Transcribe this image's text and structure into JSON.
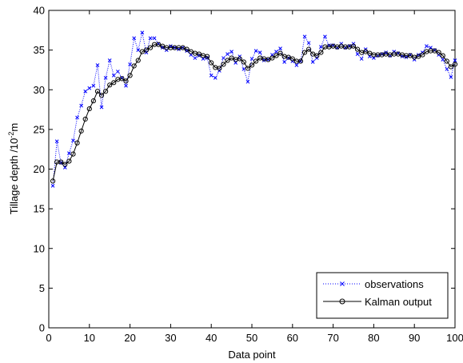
{
  "chart_data": {
    "type": "line",
    "title": "",
    "xlabel": "Data point",
    "ylabel_main": "Tillage depth /10",
    "ylabel_exp": "-2",
    "ylabel_unit": "m",
    "xlim": [
      0,
      100
    ],
    "ylim": [
      0,
      40
    ],
    "xticks": [
      0,
      10,
      20,
      30,
      40,
      50,
      60,
      70,
      80,
      90,
      100
    ],
    "yticks": [
      0,
      5,
      10,
      15,
      20,
      25,
      30,
      35,
      40
    ],
    "grid": false,
    "legend_position": "bottom-right",
    "series": [
      {
        "name": "observations",
        "color": "#0000ff",
        "line_style": "dotted",
        "marker": "x",
        "x": [
          1,
          2,
          3,
          4,
          5,
          6,
          7,
          8,
          9,
          10,
          11,
          12,
          13,
          14,
          15,
          16,
          17,
          18,
          19,
          20,
          21,
          22,
          23,
          24,
          25,
          26,
          27,
          28,
          29,
          30,
          31,
          32,
          33,
          34,
          35,
          36,
          37,
          38,
          39,
          40,
          41,
          42,
          43,
          44,
          45,
          46,
          47,
          48,
          49,
          50,
          51,
          52,
          53,
          54,
          55,
          56,
          57,
          58,
          59,
          60,
          61,
          62,
          63,
          64,
          65,
          66,
          67,
          68,
          69,
          70,
          71,
          72,
          73,
          74,
          75,
          76,
          77,
          78,
          79,
          80,
          81,
          82,
          83,
          84,
          85,
          86,
          87,
          88,
          89,
          90,
          91,
          92,
          93,
          94,
          95,
          96,
          97,
          98,
          99,
          100
        ],
        "y": [
          17.9,
          23.5,
          20.8,
          20.2,
          22.0,
          23.6,
          26.5,
          28.0,
          29.8,
          30.2,
          30.5,
          33.1,
          27.8,
          31.5,
          33.7,
          31.8,
          32.3,
          31.5,
          30.5,
          33.2,
          36.5,
          35.0,
          37.2,
          34.7,
          36.5,
          36.5,
          35.8,
          35.3,
          35.0,
          35.5,
          35.3,
          35.1,
          35.3,
          34.9,
          34.4,
          34.0,
          34.3,
          33.9,
          34.0,
          31.8,
          31.5,
          32.4,
          34.0,
          34.5,
          34.8,
          33.4,
          34.2,
          32.6,
          31.0,
          33.9,
          34.9,
          34.7,
          33.7,
          33.8,
          34.4,
          34.8,
          35.2,
          33.5,
          34.0,
          33.6,
          33.1,
          33.6,
          36.7,
          35.9,
          33.5,
          34.0,
          35.4,
          36.7,
          35.6,
          35.6,
          35.3,
          35.8,
          35.3,
          35.5,
          35.8,
          34.5,
          33.9,
          35.1,
          34.2,
          34.0,
          34.3,
          34.5,
          34.7,
          34.3,
          34.8,
          34.6,
          34.2,
          34.1,
          34.4,
          33.8,
          34.4,
          34.7,
          35.5,
          35.3,
          35.0,
          34.4,
          33.8,
          32.6,
          31.6,
          33.7
        ]
      },
      {
        "name": "Kalman output",
        "color": "#000000",
        "line_style": "solid",
        "marker": "o",
        "x": [
          1,
          2,
          3,
          4,
          5,
          6,
          7,
          8,
          9,
          10,
          11,
          12,
          13,
          14,
          15,
          16,
          17,
          18,
          19,
          20,
          21,
          22,
          23,
          24,
          25,
          26,
          27,
          28,
          29,
          30,
          31,
          32,
          33,
          34,
          35,
          36,
          37,
          38,
          39,
          40,
          41,
          42,
          43,
          44,
          45,
          46,
          47,
          48,
          49,
          50,
          51,
          52,
          53,
          54,
          55,
          56,
          57,
          58,
          59,
          60,
          61,
          62,
          63,
          64,
          65,
          66,
          67,
          68,
          69,
          70,
          71,
          72,
          73,
          74,
          75,
          76,
          77,
          78,
          79,
          80,
          81,
          82,
          83,
          84,
          85,
          86,
          87,
          88,
          89,
          90,
          91,
          92,
          93,
          94,
          95,
          96,
          97,
          98,
          99,
          100
        ],
        "y": [
          18.5,
          20.9,
          20.9,
          20.6,
          21.0,
          21.9,
          23.3,
          24.8,
          26.3,
          27.6,
          28.6,
          29.8,
          29.3,
          29.8,
          30.6,
          30.9,
          31.3,
          31.4,
          31.1,
          31.8,
          33.0,
          33.7,
          34.8,
          35.0,
          35.3,
          35.7,
          35.7,
          35.5,
          35.3,
          35.3,
          35.3,
          35.3,
          35.3,
          35.1,
          34.8,
          34.6,
          34.5,
          34.3,
          34.2,
          33.4,
          32.8,
          32.7,
          33.2,
          33.7,
          34.0,
          33.8,
          33.9,
          33.5,
          32.7,
          33.1,
          33.6,
          34.0,
          33.9,
          33.8,
          34.0,
          34.3,
          34.6,
          34.2,
          34.1,
          33.9,
          33.6,
          33.6,
          34.7,
          35.1,
          34.5,
          34.3,
          34.7,
          35.4,
          35.4,
          35.5,
          35.4,
          35.5,
          35.4,
          35.4,
          35.5,
          35.1,
          34.7,
          34.8,
          34.6,
          34.4,
          34.4,
          34.4,
          34.5,
          34.4,
          34.5,
          34.5,
          34.4,
          34.3,
          34.3,
          34.1,
          34.2,
          34.4,
          34.8,
          34.9,
          34.9,
          34.7,
          34.3,
          33.6,
          32.9,
          33.2
        ]
      }
    ]
  }
}
